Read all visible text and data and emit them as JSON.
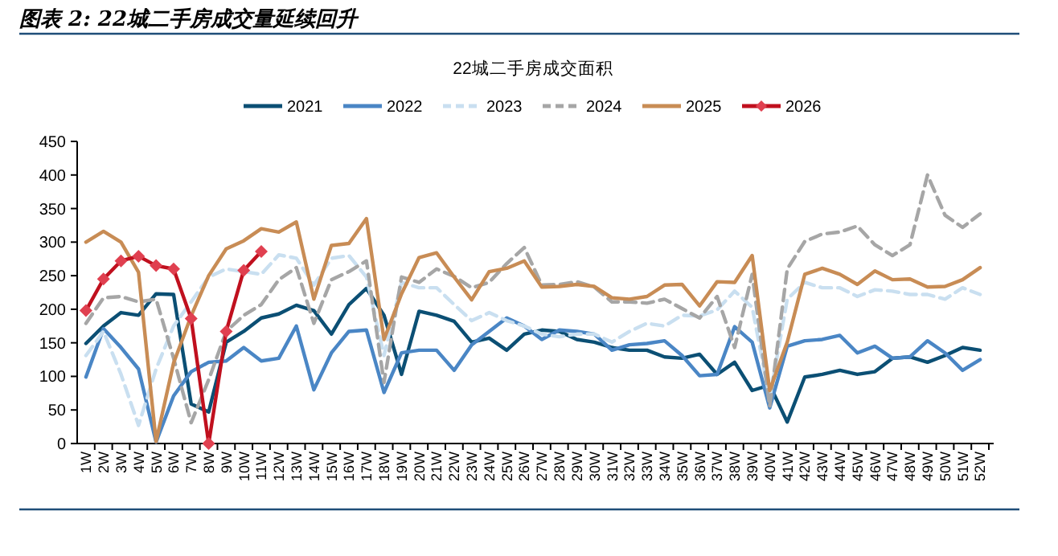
{
  "chart_data": {
    "type": "line",
    "title": "图表 2: 22城二手房成交量延续回升",
    "subtitle": "22城二手房成交面积",
    "categories": [
      "1W",
      "2W",
      "3W",
      "4W",
      "5W",
      "6W",
      "7W",
      "8W",
      "9W",
      "10W",
      "11W",
      "12W",
      "13W",
      "14W",
      "15W",
      "16W",
      "17W",
      "18W",
      "19W",
      "20W",
      "21W",
      "22W",
      "23W",
      "24W",
      "25W",
      "26W",
      "27W",
      "28W",
      "29W",
      "30W",
      "31W",
      "32W",
      "33W",
      "34W",
      "35W",
      "36W",
      "37W",
      "38W",
      "39W",
      "40W",
      "41W",
      "42W",
      "43W",
      "44W",
      "45W",
      "46W",
      "47W",
      "48W",
      "49W",
      "50W",
      "51W",
      "52W"
    ],
    "ylim": [
      0,
      450
    ],
    "yticks": [
      0,
      50,
      100,
      150,
      200,
      250,
      300,
      350,
      400,
      450
    ],
    "grid": false,
    "legend": "top",
    "series": [
      {
        "name": "2021",
        "color": "#0b4f74",
        "line_style": "solid",
        "values": [
          149,
          175,
          195,
          191,
          223,
          222,
          59,
          47,
          151,
          167,
          187,
          193,
          206,
          198,
          163,
          207,
          231,
          191,
          103,
          197,
          191,
          182,
          151,
          157,
          139,
          163,
          169,
          167,
          155,
          151,
          143,
          139,
          139,
          129,
          127,
          133,
          103,
          121,
          79,
          87,
          32,
          99,
          103,
          109,
          103,
          107,
          127,
          129,
          121,
          131,
          143,
          139
        ]
      },
      {
        "name": "2022",
        "color": "#4a86c5",
        "line_style": "solid",
        "values": [
          99,
          171,
          143,
          111,
          2,
          71,
          107,
          121,
          123,
          143,
          123,
          127,
          175,
          80,
          135,
          167,
          169,
          76,
          135,
          139,
          139,
          109,
          147,
          167,
          187,
          175,
          155,
          169,
          167,
          163,
          139,
          147,
          149,
          153,
          131,
          101,
          103,
          174,
          151,
          53,
          145,
          153,
          155,
          161,
          135,
          145,
          127,
          129,
          153,
          135,
          109,
          125
        ]
      },
      {
        "name": "2023",
        "color": "#c9dff0",
        "line_style": "dashed",
        "values": [
          131,
          167,
          103,
          27,
          111,
          175,
          211,
          248,
          260,
          256,
          252,
          281,
          276,
          236,
          276,
          280,
          248,
          131,
          240,
          232,
          232,
          207,
          183,
          195,
          183,
          175,
          163,
          159,
          163,
          163,
          151,
          167,
          179,
          175,
          191,
          190,
          199,
          227,
          203,
          67,
          215,
          240,
          232,
          232,
          219,
          229,
          227,
          222,
          222,
          215,
          232,
          222
        ]
      },
      {
        "name": "2024",
        "color": "#a6a6a6",
        "line_style": "dashed",
        "values": [
          179,
          217,
          219,
          211,
          215,
          127,
          31,
          95,
          167,
          191,
          207,
          244,
          262,
          179,
          244,
          256,
          272,
          91,
          248,
          240,
          260,
          249,
          232,
          240,
          268,
          292,
          236,
          237,
          241,
          233,
          211,
          211,
          209,
          215,
          201,
          187,
          219,
          143,
          252,
          55,
          260,
          301,
          312,
          315,
          324,
          296,
          280,
          296,
          400,
          340,
          322,
          342
        ]
      },
      {
        "name": "2025",
        "color": "#c88c55",
        "line_style": "solid",
        "values": [
          300,
          316,
          300,
          255,
          3,
          120,
          190,
          250,
          290,
          302,
          320,
          315,
          330,
          215,
          295,
          298,
          335,
          155,
          223,
          277,
          284,
          248,
          214,
          256,
          261,
          272,
          233,
          234,
          237,
          234,
          217,
          215,
          219,
          236,
          237,
          205,
          241,
          240,
          280,
          79,
          151,
          252,
          261,
          252,
          237,
          257,
          244,
          245,
          233,
          234,
          244,
          262
        ]
      },
      {
        "name": "2026",
        "color": "#c0101e",
        "line_style": "solid",
        "marker": "diamond",
        "values": [
          198,
          245,
          272,
          279,
          265,
          260,
          186,
          0,
          167,
          258,
          286,
          null,
          null,
          null,
          null,
          null,
          null,
          null,
          null,
          null,
          null,
          null,
          null,
          null,
          null,
          null,
          null,
          null,
          null,
          null,
          null,
          null,
          null,
          null,
          null,
          null,
          null,
          null,
          null,
          null,
          null,
          null,
          null,
          null,
          null,
          null,
          null,
          null,
          null,
          null,
          null,
          null
        ]
      }
    ]
  }
}
